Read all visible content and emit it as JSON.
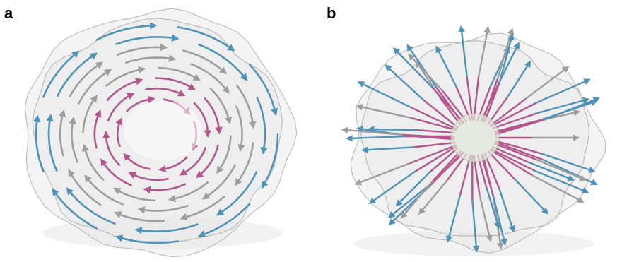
{
  "panels": [
    {
      "label": "a",
      "pattern": "circulating-flow"
    },
    {
      "label": "b",
      "pattern": "radial-outward-flow"
    }
  ],
  "colors": {
    "outer_arrows": "#4f93b8",
    "middle_arrows": "#9e9e9e",
    "inner_arrows": "#b4568d",
    "surface": "#e6e6e6",
    "surface_edge": "#9a9a9a",
    "core_sphere": "#dfe8da"
  }
}
